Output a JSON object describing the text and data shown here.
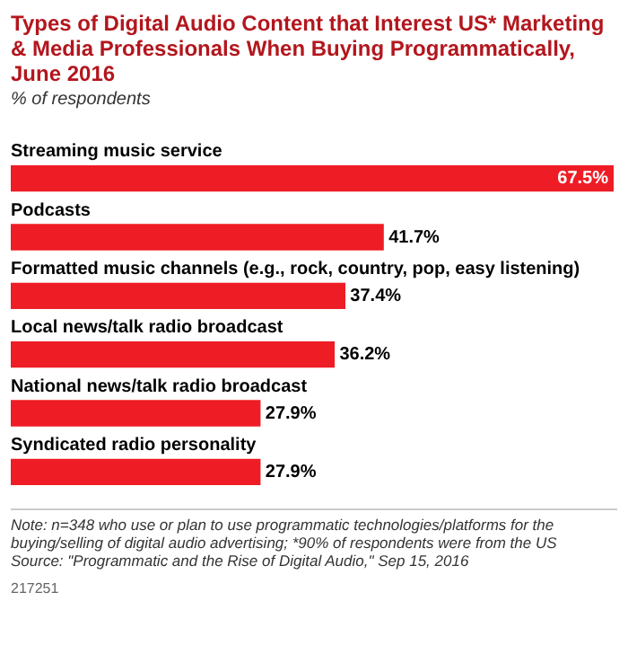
{
  "chart_data": {
    "type": "bar",
    "orientation": "horizontal",
    "title": "Types of Digital Audio Content that Interest US* Marketing & Media Professionals When Buying Programmatically, June 2016",
    "subtitle": "% of respondents",
    "categories": [
      "Streaming music service",
      "Podcasts",
      "Formatted music channels (e.g., rock, country, pop, easy listening)",
      "Local news/talk radio broadcast",
      "National news/talk radio broadcast",
      "Syndicated radio personality"
    ],
    "values": [
      67.5,
      41.7,
      37.4,
      36.2,
      27.9,
      27.9
    ],
    "value_labels": [
      "67.5%",
      "41.7%",
      "37.4%",
      "36.2%",
      "27.9%",
      "27.9%"
    ],
    "color": "#ee1c25",
    "annotations": [
      "Note: n=348 who use or plan to use programmatic technologies/platforms for the buying/selling of digital audio advertising; *90% of respondents were from the US",
      "Source: \"Programmatic and the Rise of Digital Audio,\" Sep 15, 2016",
      "217251"
    ]
  }
}
